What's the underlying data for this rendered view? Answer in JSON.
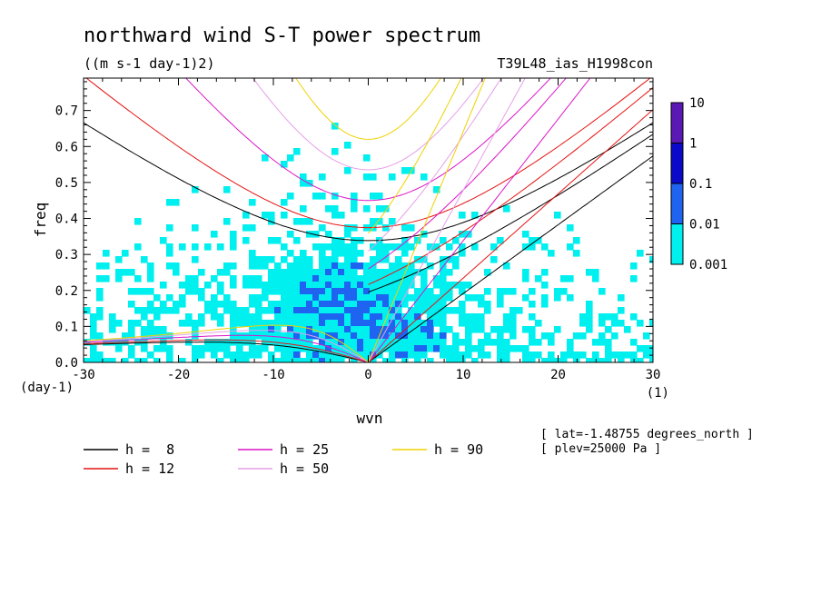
{
  "chart_data": {
    "type": "heatmap",
    "title": "northward wind S-T power spectrum",
    "units": "((m s-1 day-1)2)",
    "dataset": "T39L48_ias_H1998con",
    "xlabel": "wvn",
    "xunit": "(1)",
    "ylabel": "freq",
    "yunit": "(day-1)",
    "xlim": [
      -30,
      30
    ],
    "ylim": [
      0,
      0.79
    ],
    "x_ticks": [
      -30,
      -20,
      -10,
      0,
      10,
      20,
      30
    ],
    "x_tick_labels": [
      "-30",
      "-20",
      "-10",
      "0",
      "10",
      "20",
      "30"
    ],
    "y_ticks": [
      0,
      0.1,
      0.2,
      0.3,
      0.4,
      0.5,
      0.6,
      0.7
    ],
    "y_tick_labels": [
      "0.0",
      "0.1",
      "0.2",
      "0.3",
      "0.4",
      "0.5",
      "0.6",
      "0.7"
    ],
    "colorbar": {
      "levels": [
        "10",
        "1",
        "0.1",
        "0.01",
        "0.001"
      ],
      "colors": [
        "#5a18b4",
        "#0a0ac8",
        "#1e64f0",
        "#00f0f0"
      ]
    },
    "dispersion_curves": [
      {
        "label": "h =  8",
        "h": 8,
        "color": "#000000"
      },
      {
        "label": "h = 12",
        "h": 12,
        "color": "#e61414"
      },
      {
        "label": "h = 25",
        "h": 25,
        "color": "#dc14c8"
      },
      {
        "label": "h = 50",
        "h": 50,
        "color": "#e6a0e6"
      },
      {
        "label": "h = 90",
        "h": 90,
        "color": "#f0d200"
      }
    ],
    "annotations": [
      "[ lat=-1.48755 degrees_north ]",
      "[ plev=25000 Pa ]"
    ],
    "grid": false
  }
}
